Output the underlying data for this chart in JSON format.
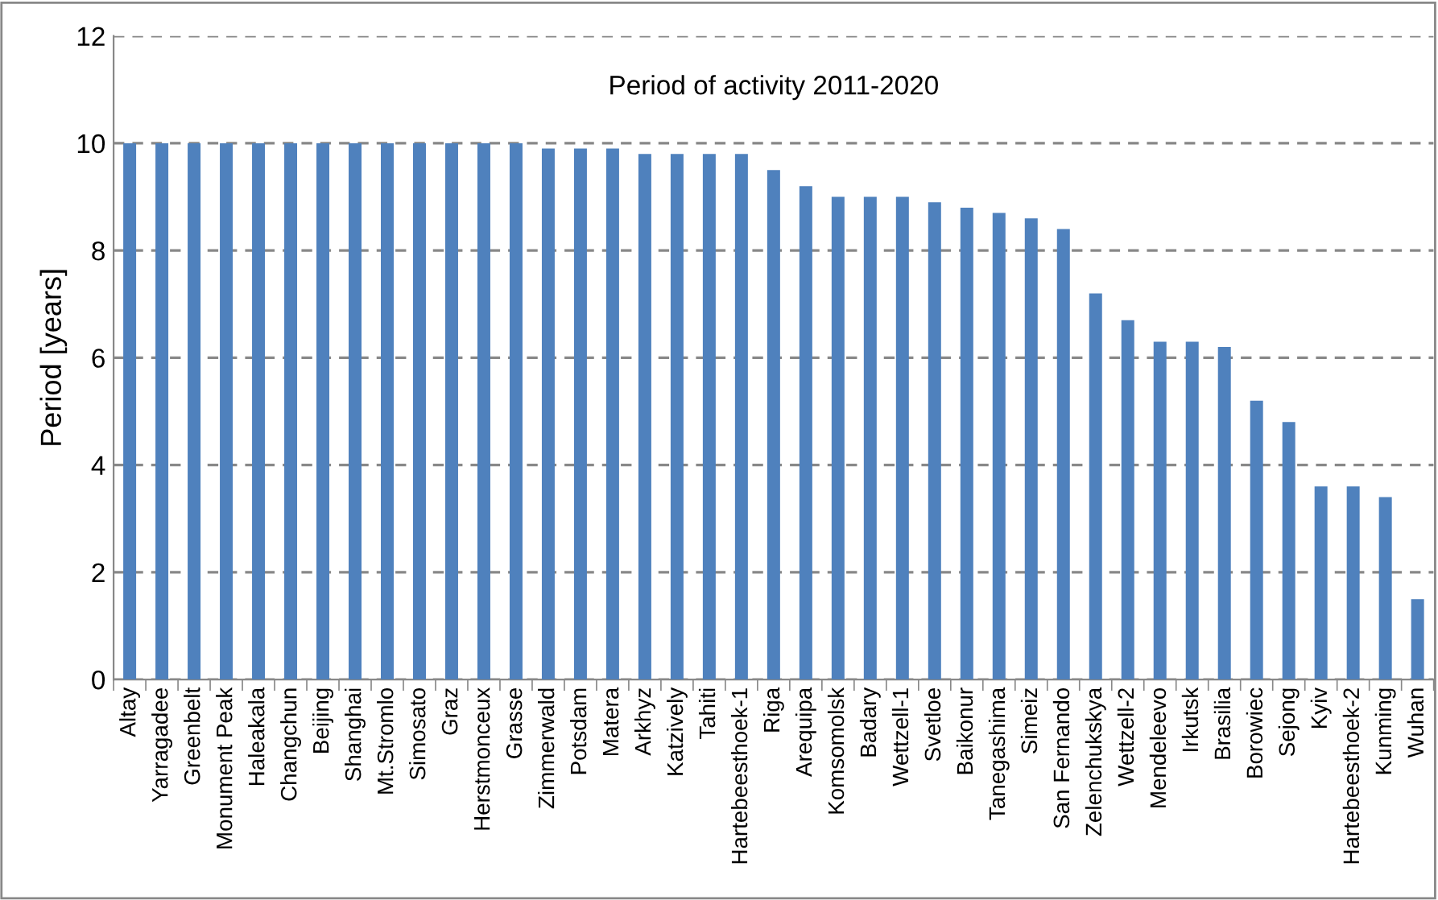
{
  "chart_data": {
    "type": "bar",
    "categories": [
      "Altay",
      "Yarragadee",
      "Greenbelt",
      "Monument Peak",
      "Haleakala",
      "Changchun",
      "Beijing",
      "Shanghai",
      "Mt.Stromlo",
      "Simosato",
      "Graz",
      "Herstmonceux",
      "Grasse",
      "Zimmerwald",
      "Potsdam",
      "Matera",
      "Arkhyz",
      "Katzively",
      "Tahiti",
      "Hartebeesthoek-1",
      "Riga",
      "Arequipa",
      "Komsomolsk",
      "Badary",
      "Wettzell-1",
      "Svetloe",
      "Baikonur",
      "Tanegashima",
      "Simeiz",
      "San Fernando",
      "Zelenchukskya",
      "Wettzell-2",
      "Mendeleevo",
      "Irkutsk",
      "Brasilia",
      "Borowiec",
      "Sejong",
      "Kyiv",
      "Hartebeesthoek-2",
      "Kunming",
      "Wuhan"
    ],
    "values": [
      10,
      10,
      10,
      10,
      10,
      10,
      10,
      10,
      10,
      10,
      10,
      10,
      10,
      9.9,
      9.9,
      9.9,
      9.8,
      9.8,
      9.8,
      9.8,
      9.5,
      9.2,
      9.0,
      9.0,
      9.0,
      8.9,
      8.8,
      8.7,
      8.6,
      8.4,
      7.2,
      6.7,
      6.3,
      6.3,
      6.2,
      5.2,
      4.8,
      3.6,
      3.6,
      3.4,
      1.5
    ],
    "color": "#4f81bd",
    "ylabel": "Period [years]",
    "annotations": [
      "Period of activity 2011-2020"
    ],
    "ylim": [
      0,
      12
    ],
    "yticks": [
      0,
      2,
      4,
      6,
      8,
      10,
      12
    ],
    "grid": "y"
  }
}
